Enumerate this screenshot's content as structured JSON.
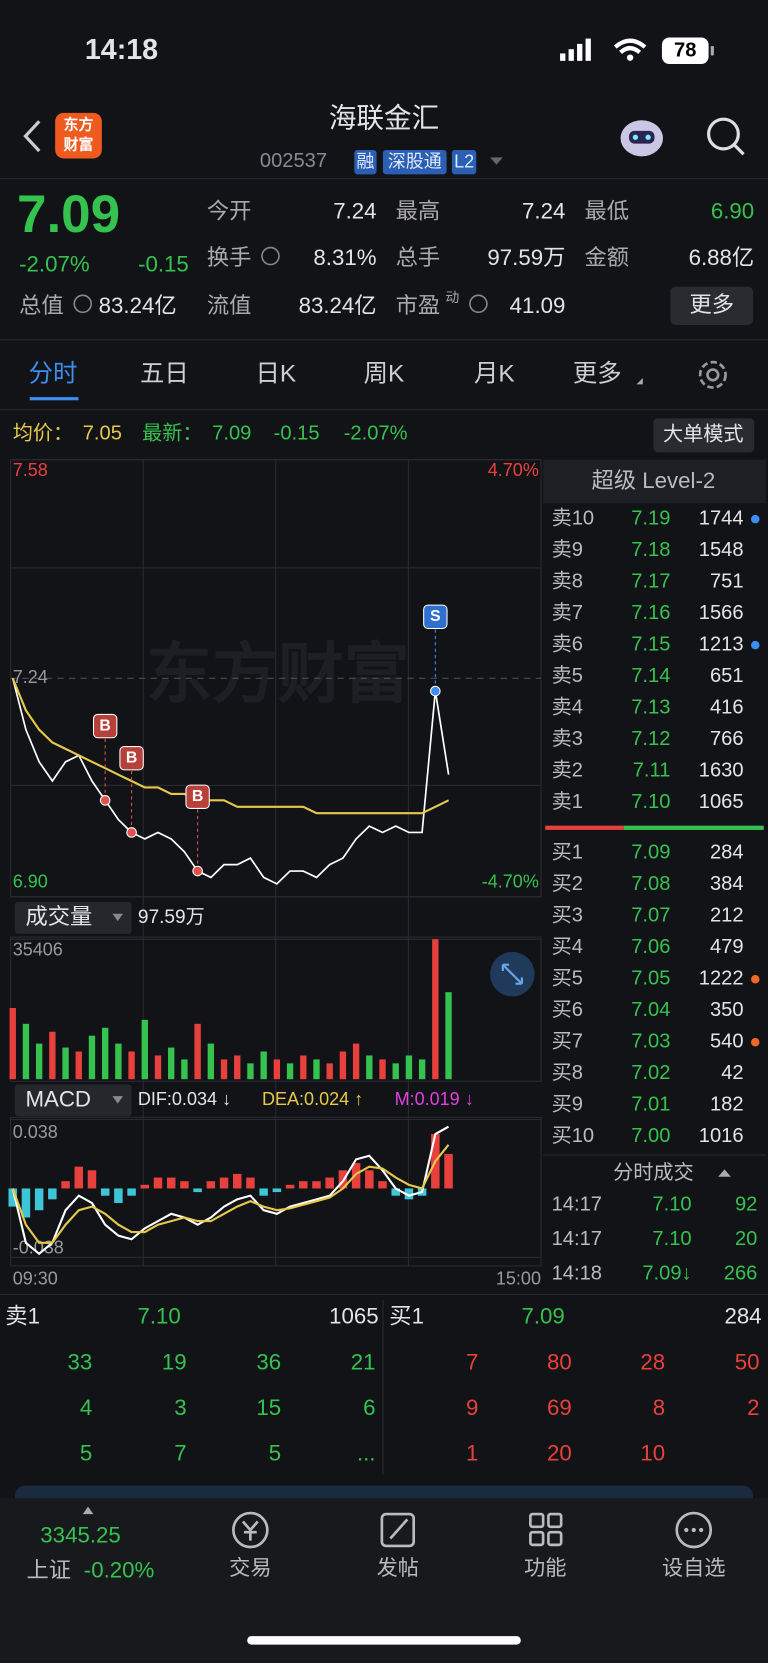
{
  "status_bar": {
    "time": "14:18",
    "battery": "78"
  },
  "header": {
    "logo": [
      "东方",
      "财富"
    ],
    "title": "海联金汇",
    "code": "002537",
    "tags": [
      "融",
      "深股通",
      "L2"
    ]
  },
  "quote": {
    "price": "7.09",
    "change_pct": "-2.07%",
    "change": "-0.15",
    "fields": [
      {
        "label": "今开",
        "value": "7.24"
      },
      {
        "label": "最高",
        "value": "7.24"
      },
      {
        "label": "最低",
        "value": "6.90"
      },
      {
        "label": "换手",
        "value": "8.31%"
      },
      {
        "label": "总手",
        "value": "97.59万"
      },
      {
        "label": "金额",
        "value": "6.88亿"
      },
      {
        "label": "总值",
        "value": "83.24亿"
      },
      {
        "label": "流值",
        "value": "83.24亿"
      },
      {
        "label": "市盈",
        "sup": "动",
        "value": "41.09"
      }
    ],
    "more": "更多"
  },
  "tabs": [
    "分时",
    "五日",
    "日K",
    "周K",
    "月K",
    "更多"
  ],
  "summary": {
    "avg_label": "均价：",
    "avg": "7.05",
    "latest_label": "最新：",
    "latest": "7.09",
    "change": "-0.15",
    "change_pct": "-2.07%",
    "mode_button": "大单模式"
  },
  "chart_data": [
    {
      "type": "line",
      "watermark": "东方财富",
      "ylim": [
        6.9,
        7.58
      ],
      "yticks": [
        7.58,
        7.24,
        {
          "value": 6.9,
          "label": "6.90"
        }
      ],
      "pct_labels": [
        "4.70%",
        "-4.70%"
      ],
      "time_labels": [
        "09:30",
        "15:00"
      ],
      "signals": [
        "B",
        "B",
        "B",
        "S"
      ],
      "series": [
        {
          "color": "#ffffff",
          "values": [
            7.24,
            7.16,
            7.11,
            7.08,
            7.11,
            7.12,
            7.08,
            7.05,
            7.02,
            7.0,
            6.99,
            7.0,
            6.99,
            6.97,
            6.94,
            6.93,
            6.95,
            6.95,
            6.96,
            6.93,
            6.92,
            6.94,
            6.94,
            6.93,
            6.95,
            6.96,
            6.99,
            7.01,
            7.0,
            7.01,
            7.0,
            7.0,
            7.22,
            7.09,
            null,
            null,
            null,
            null,
            null,
            null,
            null
          ]
        },
        {
          "color": "#e6c94a",
          "values": [
            7.24,
            7.19,
            7.16,
            7.14,
            7.13,
            7.12,
            7.11,
            7.1,
            7.09,
            7.08,
            7.07,
            7.07,
            7.06,
            7.06,
            7.05,
            7.05,
            7.05,
            7.04,
            7.04,
            7.04,
            7.04,
            7.04,
            7.04,
            7.03,
            7.03,
            7.03,
            7.03,
            7.03,
            7.03,
            7.03,
            7.03,
            7.03,
            7.04,
            7.05,
            null,
            null,
            null,
            null,
            null,
            null,
            null
          ]
        }
      ]
    },
    {
      "type": "bar",
      "title": "成交量",
      "total": "97.59万",
      "ylim": [
        0,
        35406
      ],
      "yticks": [
        35406
      ],
      "values": [
        18000,
        14000,
        9000,
        12000,
        8000,
        7000,
        11000,
        13000,
        9000,
        7000,
        15000,
        6000,
        8000,
        5000,
        14000,
        9000,
        5000,
        6000,
        4000,
        7000,
        5000,
        4000,
        6000,
        5000,
        4000,
        7000,
        9000,
        6000,
        5000,
        4000,
        6000,
        5000,
        35406,
        22000
      ],
      "colors": [
        "#e8413d",
        "#35c24f",
        "#35c24f",
        "#e8413d",
        "#35c24f",
        "#e8413d",
        "#35c24f",
        "#35c24f",
        "#35c24f",
        "#e8413d",
        "#35c24f",
        "#e8413d",
        "#35c24f",
        "#35c24f",
        "#e8413d",
        "#35c24f",
        "#e8413d",
        "#e8413d",
        "#35c24f",
        "#35c24f",
        "#e8413d",
        "#35c24f",
        "#e8413d",
        "#35c24f",
        "#e8413d",
        "#e8413d",
        "#e8413d",
        "#35c24f",
        "#e8413d",
        "#35c24f",
        "#35c24f",
        "#35c24f",
        "#e8413d",
        "#35c24f"
      ]
    },
    {
      "type": "macd",
      "title": "MACD",
      "legend": [
        {
          "text": "DIF:0.034 ↓",
          "color": "#e4e4e6"
        },
        {
          "text": "DEA:0.024 ↑",
          "color": "#e6c94a"
        },
        {
          "text": "M:0.019 ↓",
          "color": "#e040e0"
        }
      ],
      "ylim": [
        -0.038,
        0.038
      ],
      "yticks": [
        0.038,
        -0.038
      ],
      "bar_colors": [
        "#e8413d",
        "#3ec6d8"
      ],
      "bars": [
        -0.01,
        -0.016,
        -0.012,
        -0.006,
        0.004,
        0.012,
        0.01,
        -0.004,
        -0.008,
        -0.004,
        0.002,
        0.006,
        0.006,
        0.004,
        -0.002,
        0.004,
        0.006,
        0.008,
        0.006,
        -0.004,
        -0.002,
        0.002,
        0.004,
        0.004,
        0.006,
        0.01,
        0.014,
        0.01,
        0.004,
        -0.004,
        -0.006,
        -0.004,
        0.03,
        0.019
      ],
      "series": [
        {
          "color": "#ffffff",
          "values": [
            0.0,
            -0.03,
            -0.036,
            -0.03,
            -0.012,
            -0.004,
            -0.008,
            -0.02,
            -0.026,
            -0.028,
            -0.022,
            -0.018,
            -0.014,
            -0.016,
            -0.02,
            -0.016,
            -0.01,
            -0.006,
            -0.004,
            -0.012,
            -0.014,
            -0.01,
            -0.008,
            -0.006,
            -0.004,
            0.004,
            0.016,
            0.018,
            0.01,
            0.0,
            -0.004,
            -0.002,
            0.03,
            0.034
          ]
        },
        {
          "color": "#e6c94a",
          "values": [
            0.0,
            -0.02,
            -0.03,
            -0.03,
            -0.02,
            -0.012,
            -0.01,
            -0.014,
            -0.02,
            -0.024,
            -0.024,
            -0.02,
            -0.018,
            -0.016,
            -0.018,
            -0.018,
            -0.014,
            -0.01,
            -0.007,
            -0.01,
            -0.012,
            -0.011,
            -0.009,
            -0.007,
            -0.005,
            0.0,
            0.008,
            0.012,
            0.011,
            0.006,
            0.002,
            0.0,
            0.015,
            0.024
          ]
        }
      ]
    }
  ],
  "order_book": {
    "title": "超级 Level-2",
    "asks": [
      {
        "label": "卖10",
        "price": "7.19",
        "volume": "1744"
      },
      {
        "label": "卖9",
        "price": "7.18",
        "volume": "1548"
      },
      {
        "label": "卖8",
        "price": "7.17",
        "volume": "751"
      },
      {
        "label": "卖7",
        "price": "7.16",
        "volume": "1566"
      },
      {
        "label": "卖6",
        "price": "7.15",
        "volume": "1213"
      },
      {
        "label": "卖5",
        "price": "7.14",
        "volume": "651"
      },
      {
        "label": "卖4",
        "price": "7.13",
        "volume": "416"
      },
      {
        "label": "卖3",
        "price": "7.12",
        "volume": "766"
      },
      {
        "label": "卖2",
        "price": "7.11",
        "volume": "1630"
      },
      {
        "label": "卖1",
        "price": "7.10",
        "volume": "1065"
      }
    ],
    "bids": [
      {
        "label": "买1",
        "price": "7.09",
        "volume": "284"
      },
      {
        "label": "买2",
        "price": "7.08",
        "volume": "384"
      },
      {
        "label": "买3",
        "price": "7.07",
        "volume": "212"
      },
      {
        "label": "买4",
        "price": "7.06",
        "volume": "479"
      },
      {
        "label": "买5",
        "price": "7.05",
        "volume": "1222"
      },
      {
        "label": "买6",
        "price": "7.04",
        "volume": "350"
      },
      {
        "label": "买7",
        "price": "7.03",
        "volume": "540"
      },
      {
        "label": "买8",
        "price": "7.02",
        "volume": "42"
      },
      {
        "label": "买9",
        "price": "7.01",
        "volume": "182"
      },
      {
        "label": "买10",
        "price": "7.00",
        "volume": "1016"
      }
    ]
  },
  "trades": {
    "title": "分时成交",
    "rows": [
      [
        "14:17",
        "7.10",
        "92"
      ],
      [
        "14:17",
        "7.10",
        "20"
      ],
      [
        "14:18",
        "7.09↓",
        "266"
      ]
    ]
  },
  "queue": {
    "sell1": {
      "label": "卖1",
      "price": "7.10",
      "volume": "1065"
    },
    "buy1": {
      "label": "买1",
      "price": "7.09",
      "volume": "284"
    },
    "sell": [
      [
        "33",
        "19",
        "36",
        "21"
      ],
      [
        "4",
        "3",
        "15",
        "6"
      ],
      [
        "5",
        "7",
        "5",
        "..."
      ]
    ],
    "buy": [
      [
        "7",
        "80",
        "28",
        "50"
      ],
      [
        "9",
        "69",
        "8",
        "2"
      ],
      [
        "1",
        "20",
        "10"
      ]
    ]
  },
  "nav": {
    "index": "3345.25",
    "index_name": "上证",
    "index_change": "-0.20%",
    "items": [
      "交易",
      "发帖",
      "功能",
      "设自选"
    ]
  }
}
